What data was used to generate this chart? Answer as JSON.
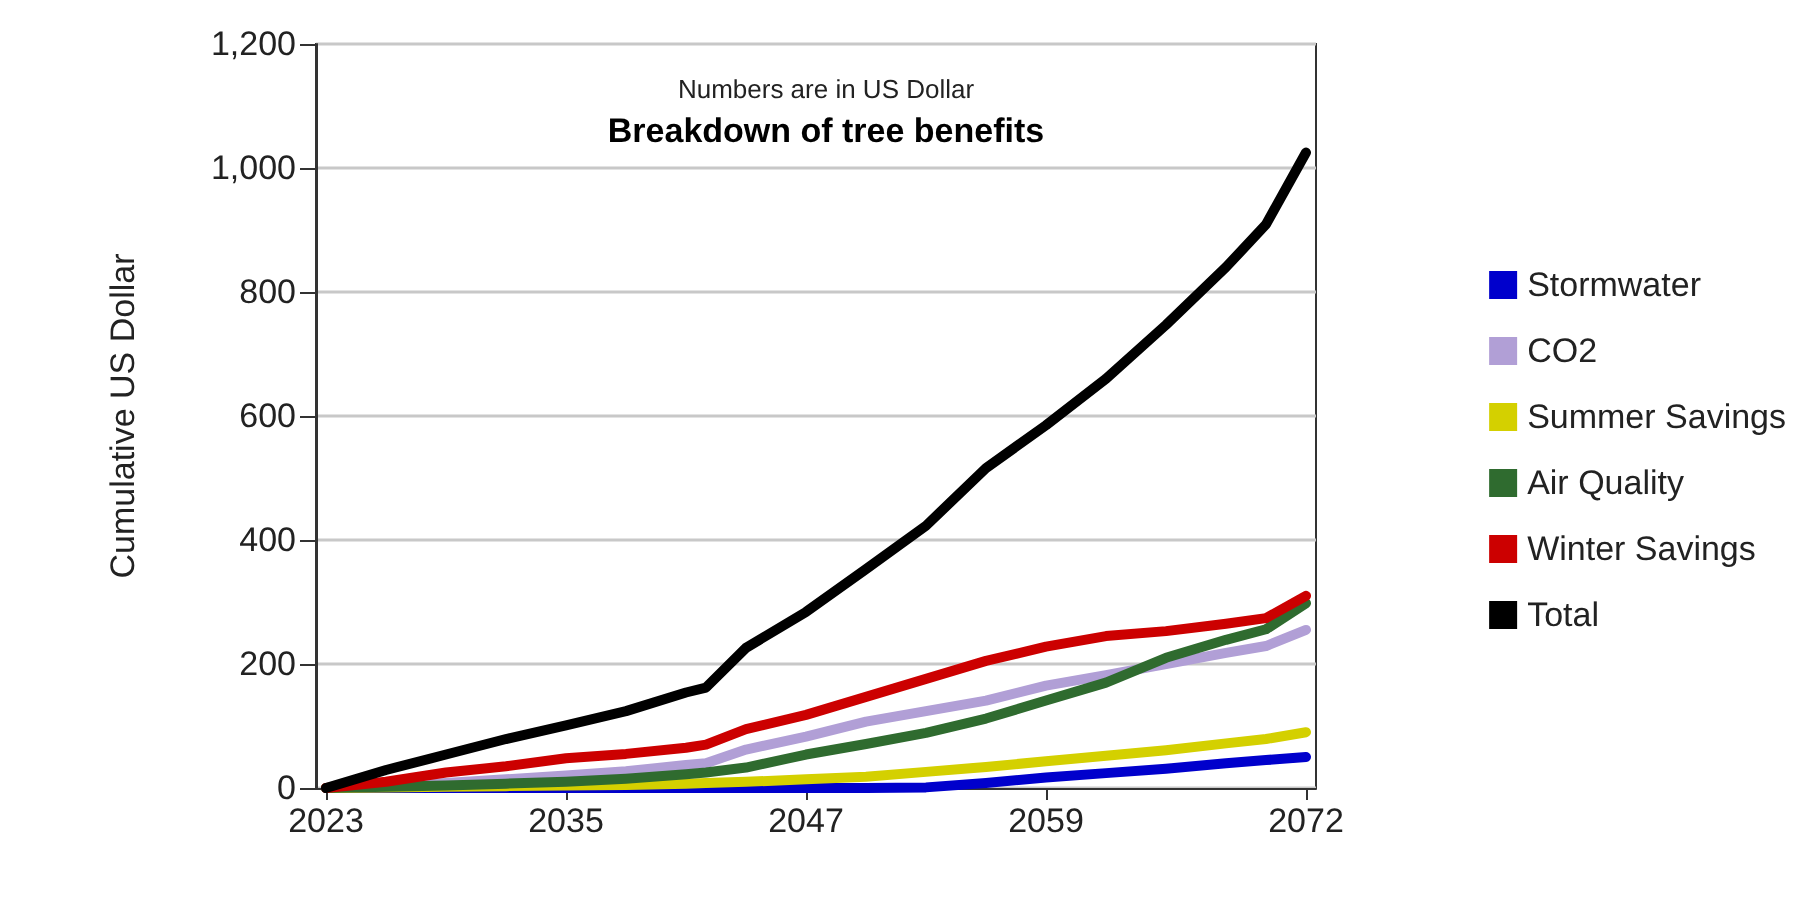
{
  "chart_data": {
    "type": "line",
    "title": "Breakdown of tree benefits",
    "subtitle": "Numbers are in US Dollar",
    "ylabel": "Cumulative US Dollar",
    "x": [
      2023,
      2026,
      2029,
      2032,
      2035,
      2038,
      2041,
      2042,
      2044,
      2047,
      2050,
      2053,
      2056,
      2059,
      2062,
      2065,
      2068,
      2070,
      2072
    ],
    "series": [
      {
        "name": "Stormwater",
        "color": "#0000cc",
        "values": [
          0,
          0,
          0,
          0,
          0,
          0,
          0,
          0,
          0,
          0,
          0,
          1,
          8,
          17,
          24,
          31,
          40,
          45,
          50
        ]
      },
      {
        "name": "CO2",
        "color": "#b19fd6",
        "values": [
          0,
          3,
          8,
          14,
          20,
          27,
          37,
          40,
          62,
          83,
          107,
          124,
          141,
          165,
          182,
          200,
          218,
          229,
          255
        ]
      },
      {
        "name": "Summer Savings",
        "color": "#d4d000",
        "values": [
          0,
          1,
          2,
          3,
          4,
          5,
          7,
          8,
          10,
          14,
          18,
          26,
          34,
          43,
          52,
          61,
          72,
          79,
          90
        ]
      },
      {
        "name": "Air Quality",
        "color": "#2f6b2f",
        "values": [
          0,
          2,
          4,
          7,
          10,
          15,
          22,
          25,
          33,
          54,
          71,
          89,
          112,
          141,
          170,
          210,
          239,
          256,
          298
        ]
      },
      {
        "name": "Winter Savings",
        "color": "#cc0000",
        "values": [
          0,
          10,
          25,
          35,
          48,
          55,
          65,
          70,
          95,
          118,
          147,
          176,
          205,
          228,
          245,
          253,
          265,
          274,
          310
        ]
      },
      {
        "name": "Total",
        "color": "#000000",
        "values": [
          0,
          29,
          54,
          79,
          101,
          124,
          154,
          162,
          226,
          284,
          353,
          423,
          516,
          585,
          660,
          747,
          840,
          909,
          1025
        ]
      }
    ],
    "xlim": [
      2022.5,
      2072.5
    ],
    "xticks": [
      2023,
      2035,
      2047,
      2059,
      2072
    ],
    "ylim": [
      0,
      1200
    ],
    "yticks": [
      0,
      200,
      400,
      600,
      800,
      {
        "value": 1000,
        "label": "1,000"
      },
      {
        "value": 1200,
        "label": "1,200"
      }
    ],
    "grid": "y",
    "legend": "right",
    "marker": "none",
    "line_style": "solid"
  }
}
